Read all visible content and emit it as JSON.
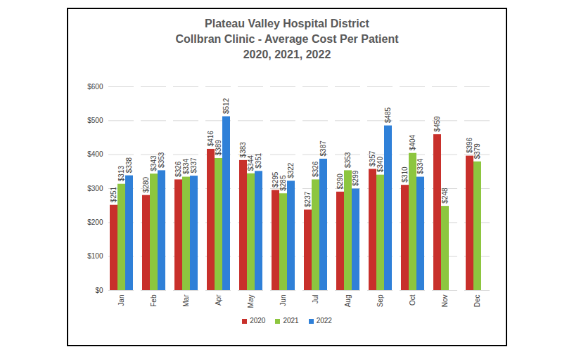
{
  "chart_data": {
    "type": "bar",
    "title": "Plateau Valley Hospital District\nCollbran Clinic  - Average Cost Per Patient\n2020, 2021, 2022",
    "categories": [
      "Jan",
      "Feb",
      "Mar",
      "Apr",
      "May",
      "Jun",
      "Jul",
      "Aug",
      "Sep",
      "Oct",
      "Nov",
      "Dec"
    ],
    "series": [
      {
        "name": "2020",
        "color": "#c8302b",
        "values": [
          251,
          280,
          326,
          416,
          383,
          295,
          237,
          290,
          357,
          310,
          459,
          396
        ],
        "value_labels": [
          "$251",
          "$280",
          "$326",
          "$416",
          "$383",
          "$295",
          "$237",
          "$290",
          "$357",
          "$310",
          "$459",
          "$396"
        ]
      },
      {
        "name": "2021",
        "color": "#8dc63f",
        "values": [
          313,
          343,
          334,
          389,
          344,
          285,
          326,
          353,
          340,
          404,
          248,
          379
        ],
        "value_labels": [
          "$313",
          "$343",
          "$334",
          "$389",
          "$344",
          "$285",
          "$326",
          "$353",
          "$340",
          "$404",
          "$248",
          "$379"
        ]
      },
      {
        "name": "2022",
        "color": "#2f80d8",
        "values": [
          338,
          353,
          337,
          512,
          351,
          322,
          387,
          299,
          485,
          334,
          null,
          null
        ],
        "value_labels": [
          "$338",
          "$353",
          "$337",
          "$512",
          "$351",
          "$322",
          "$387",
          "$299",
          "$485",
          "$334",
          null,
          null
        ]
      }
    ],
    "ylim": [
      0,
      600
    ],
    "yticks": [
      {
        "value": 0,
        "label": "$0"
      },
      {
        "value": 100,
        "label": "$100"
      },
      {
        "value": 200,
        "label": "$200"
      },
      {
        "value": 300,
        "label": "$300"
      },
      {
        "value": 400,
        "label": "$400"
      },
      {
        "value": 500,
        "label": "$500"
      },
      {
        "value": 600,
        "label": "$600"
      }
    ],
    "grid": true,
    "data_labels": true,
    "legend": "bottom"
  }
}
